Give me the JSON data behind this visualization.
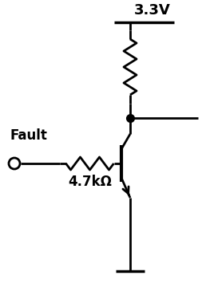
{
  "bg_color": "#ffffff",
  "line_color": "#000000",
  "line_width": 2.0,
  "title": "3.3V",
  "fault_label": "Fault",
  "resistor_label": "4.7kΩ",
  "title_fontsize": 13,
  "fault_fontsize": 12,
  "res_label_fontsize": 12,
  "fig_width": 2.63,
  "fig_height": 3.85,
  "dpi": 100
}
